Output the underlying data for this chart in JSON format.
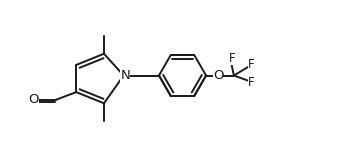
{
  "figsize": [
    3.59,
    1.51
  ],
  "dpi": 100,
  "bg_color": "#ffffff",
  "bond_color": "#1a1a1a",
  "lw": 1.4,
  "font_size": 8.5,
  "font_color": "#1a1a1a",
  "label_N": "N",
  "label_O_ether": "O",
  "label_O_ald": "O",
  "label_F1": "F",
  "label_F2": "F",
  "label_F3": "F"
}
